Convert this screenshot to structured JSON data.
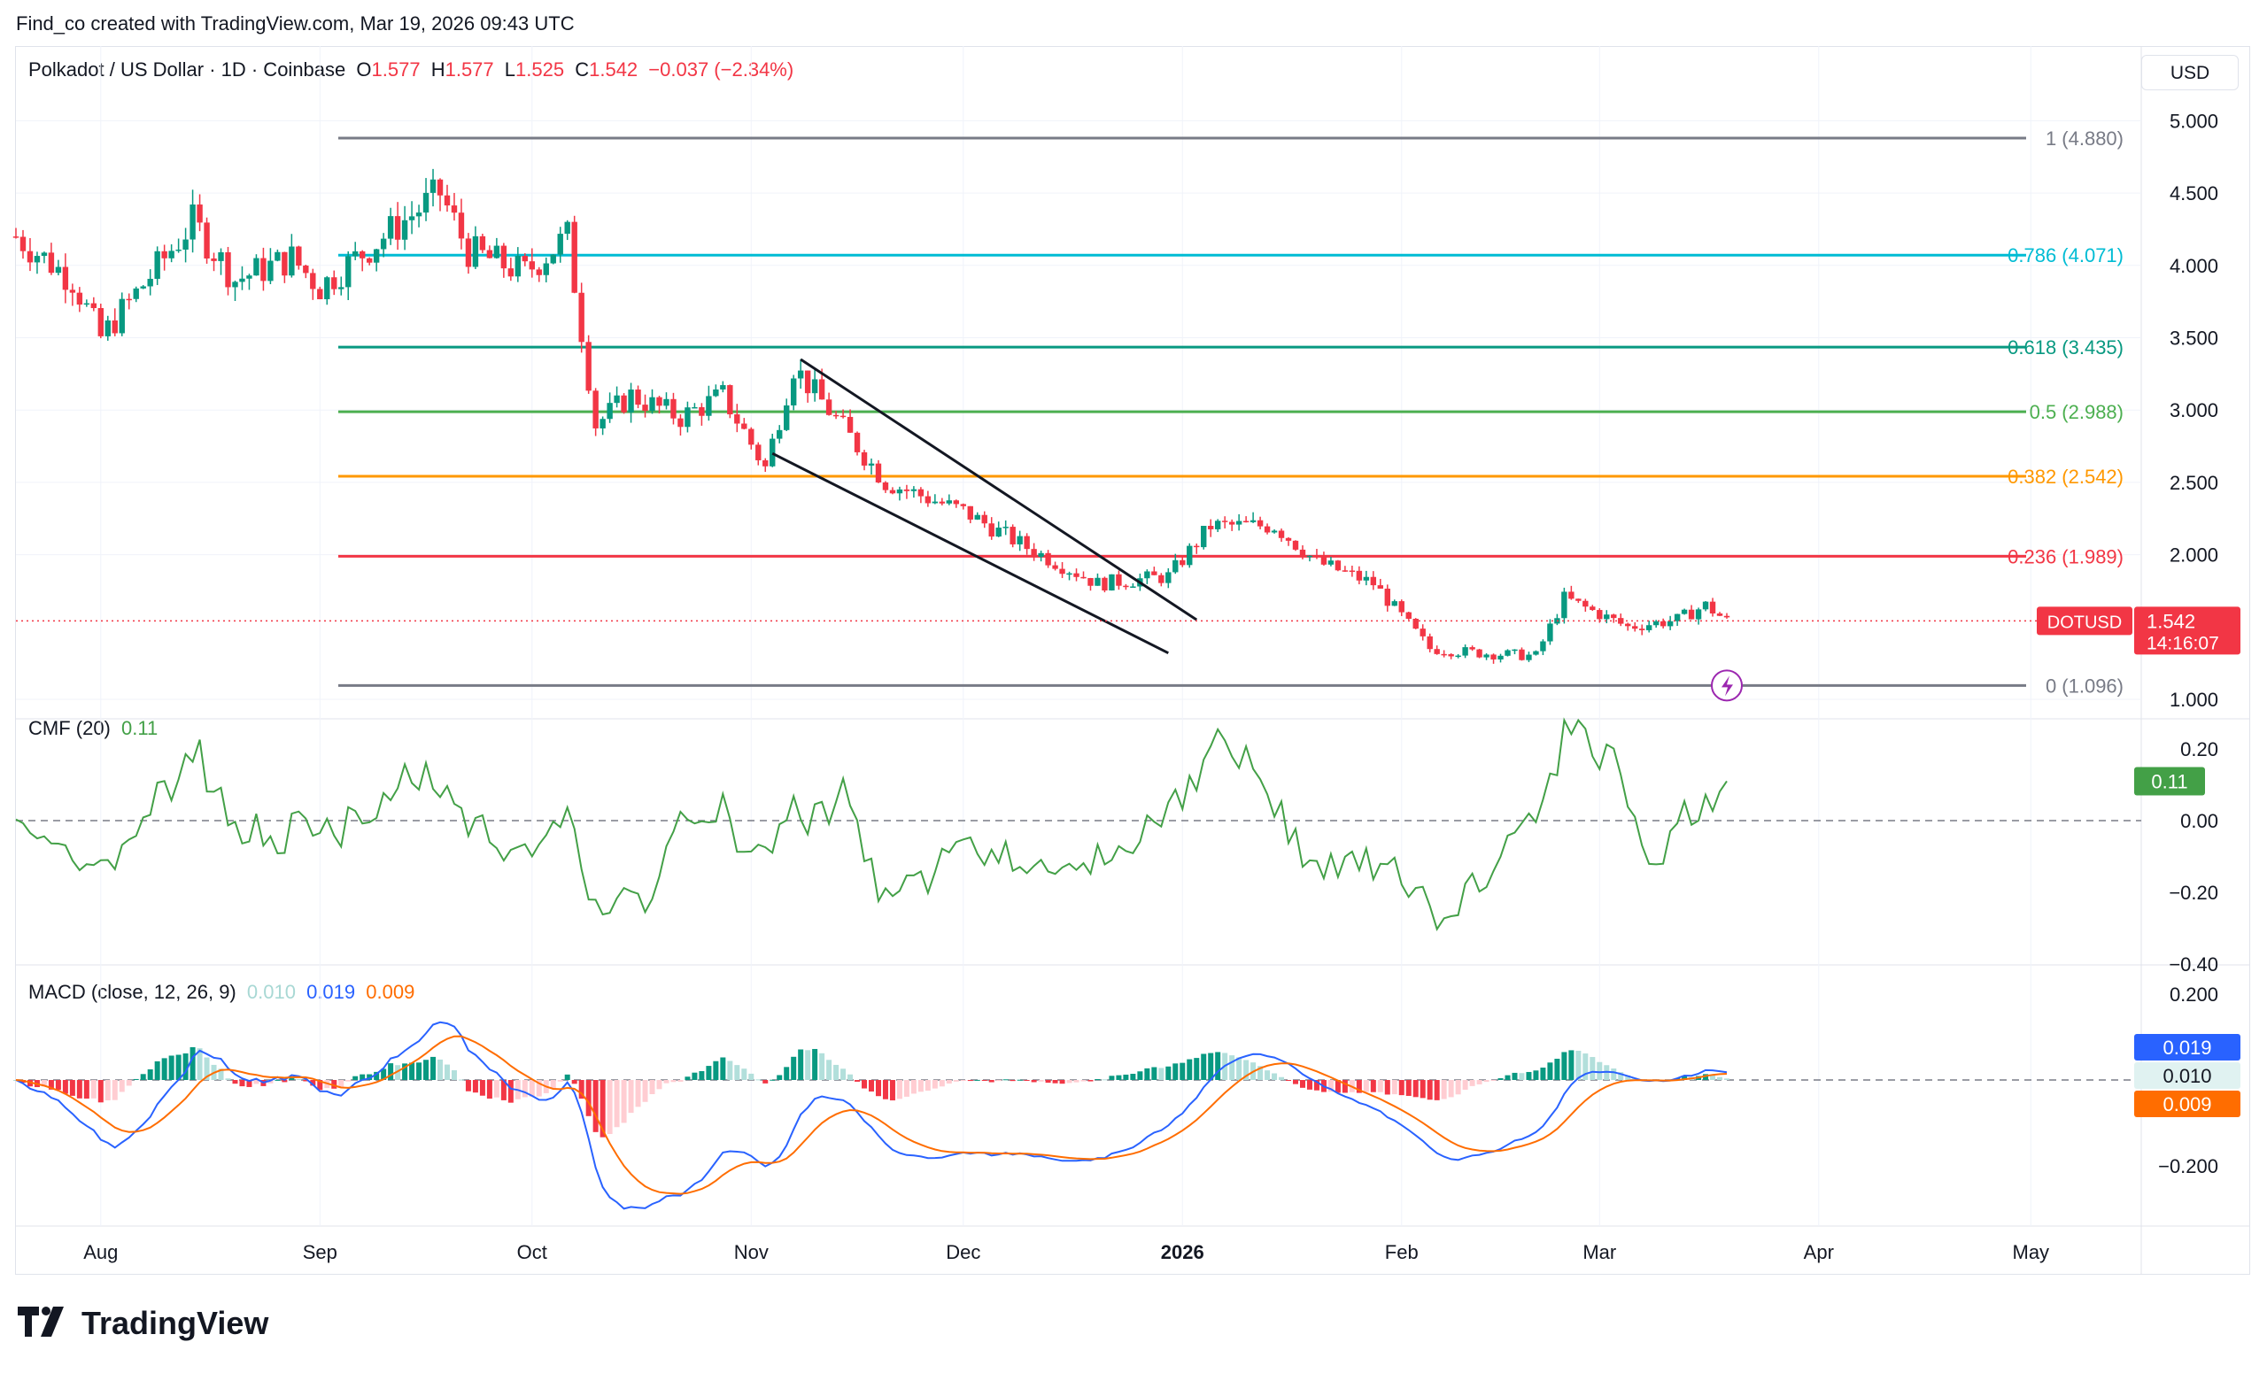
{
  "header": {
    "created_text": "Find_co created with TradingView.com, Mar 19, 2026 09:43 UTC"
  },
  "symbol": {
    "name": "Polkadot / US Dollar · 1D · Coinbase",
    "o_label": "O",
    "o_value": "1.577",
    "h_label": "H",
    "h_value": "1.577",
    "l_label": "L",
    "l_value": "1.525",
    "c_label": "C",
    "c_value": "1.542",
    "change": "−0.037 (−2.34%)"
  },
  "currency_button": "USD",
  "price_axis": {
    "ticks": [
      "5.000",
      "4.500",
      "4.000",
      "3.500",
      "3.000",
      "2.500",
      "2.000",
      "1.000"
    ],
    "ticks_values": [
      5.0,
      4.5,
      4.0,
      3.5,
      3.0,
      2.5,
      2.0,
      1.0
    ],
    "last_label_symbol": "DOTUSD",
    "last_price": "1.542",
    "countdown": "14:16:07"
  },
  "fib_levels": [
    {
      "label": "1 (4.880)",
      "value": 4.88,
      "color": "#787b86"
    },
    {
      "label": "0.786 (4.071)",
      "value": 4.071,
      "color": "#00bcd4"
    },
    {
      "label": "0.618 (3.435)",
      "value": 3.435,
      "color": "#089981"
    },
    {
      "label": "0.5 (2.988)",
      "value": 2.988,
      "color": "#4caf50"
    },
    {
      "label": "0.382 (2.542)",
      "value": 2.542,
      "color": "#ff9800"
    },
    {
      "label": "0.236 (1.989)",
      "value": 1.989,
      "color": "#f23645"
    },
    {
      "label": "0 (1.096)",
      "value": 1.096,
      "color": "#787b86"
    }
  ],
  "cmf": {
    "title": "CMF (20)",
    "value": "0.11",
    "ticks": [
      "0.20",
      "0.00",
      "−0.20",
      "−0.40"
    ],
    "ticks_values": [
      0.2,
      0.0,
      -0.2,
      -0.4
    ],
    "current_badge": "0.11",
    "color": "#43a047"
  },
  "macd": {
    "title": "MACD (close, 12, 26, 9)",
    "hist_value": "0.010",
    "macd_value": "0.019",
    "signal_value": "0.009",
    "ticks": [
      "0.200",
      "−0.200"
    ],
    "ticks_values": [
      0.2,
      -0.2
    ],
    "macd_color": "#2962ff",
    "signal_color": "#ff6d00"
  },
  "time_axis": {
    "labels": [
      "Aug",
      "Sep",
      "Oct",
      "Nov",
      "Dec",
      "2026",
      "Feb",
      "Mar",
      "Apr",
      "May"
    ]
  },
  "brand": "TradingView",
  "colors": {
    "up": "#089981",
    "down": "#f23645",
    "grid": "#f0f3fa"
  },
  "chart_data": {
    "type": "candlestick",
    "title": "Polkadot / US Dollar · 1D · Coinbase",
    "x_start": "2025-07-20",
    "x_end": "2026-03-19",
    "close_series_keypoints": [
      [
        "2025-07-20",
        4.2
      ],
      [
        "2025-07-28",
        3.9
      ],
      [
        "2025-08-01",
        3.5
      ],
      [
        "2025-08-10",
        4.05
      ],
      [
        "2025-08-14",
        4.3
      ],
      [
        "2025-08-20",
        3.9
      ],
      [
        "2025-08-28",
        4.05
      ],
      [
        "2025-09-01",
        3.85
      ],
      [
        "2025-09-10",
        4.2
      ],
      [
        "2025-09-18",
        4.5
      ],
      [
        "2025-09-22",
        4.1
      ],
      [
        "2025-09-30",
        3.95
      ],
      [
        "2025-10-06",
        4.2
      ],
      [
        "2025-10-10",
        2.9
      ],
      [
        "2025-10-15",
        3.1
      ],
      [
        "2025-10-22",
        2.95
      ],
      [
        "2025-10-28",
        3.1
      ],
      [
        "2025-11-03",
        2.6
      ],
      [
        "2025-11-07",
        3.3
      ],
      [
        "2025-11-12",
        3.0
      ],
      [
        "2025-11-20",
        2.5
      ],
      [
        "2025-12-01",
        2.3
      ],
      [
        "2025-12-10",
        2.05
      ],
      [
        "2025-12-20",
        1.8
      ],
      [
        "2025-12-30",
        1.85
      ],
      [
        "2026-01-05",
        2.2
      ],
      [
        "2026-01-14",
        2.2
      ],
      [
        "2026-01-20",
        1.95
      ],
      [
        "2026-01-28",
        1.8
      ],
      [
        "2026-02-05",
        1.35
      ],
      [
        "2026-02-12",
        1.32
      ],
      [
        "2026-02-20",
        1.3
      ],
      [
        "2026-02-24",
        1.7
      ],
      [
        "2026-03-05",
        1.5
      ],
      [
        "2026-03-12",
        1.55
      ],
      [
        "2026-03-16",
        1.65
      ],
      [
        "2026-03-19",
        1.542
      ]
    ],
    "last": {
      "open": 1.577,
      "high": 1.577,
      "low": 1.525,
      "close": 1.542
    },
    "y_range": [
      1.0,
      5.0
    ],
    "fib_retracement": [
      4.88,
      4.071,
      3.435,
      2.988,
      2.542,
      1.989,
      1.096
    ],
    "trendlines": "falling wedge from early Nov 2025 to late Dec 2025",
    "cmf_last": 0.11,
    "macd_last": {
      "histogram": 0.01,
      "macd": 0.019,
      "signal": 0.009
    }
  }
}
